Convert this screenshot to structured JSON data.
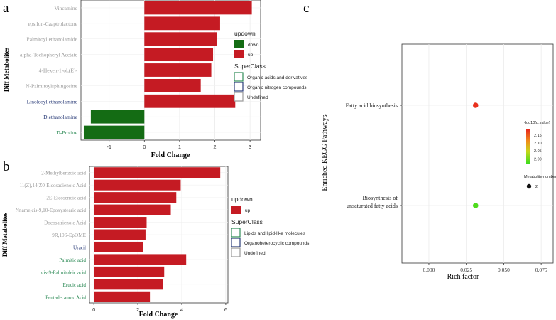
{
  "panel_labels": [
    "a",
    "b",
    "c"
  ],
  "colors": {
    "up": "#c51b23",
    "down": "#146c14",
    "orgacid": "#2e8b57",
    "orgnitro": "#2a3c78",
    "undef": "#9a9a9a",
    "lipid": "#2e8b57",
    "orgahetero": "#2a3c78"
  },
  "chart_data": [
    {
      "type": "bar",
      "orientation": "horizontal",
      "ylabel": "Diff Metabolites",
      "xlabel": "Fold Change",
      "xlim": [
        -1.8,
        3.3
      ],
      "xticks": [
        -1,
        0,
        1,
        2,
        3
      ],
      "xtick_labels": [
        "-1",
        "0",
        "1",
        "2",
        "3"
      ],
      "categories": [
        "Vincamine",
        "epsilon-Caaptrolactone",
        "Palmitoyl ethanolamide",
        "alpha-Tochopheryl Acetate",
        "4-Hexen-1-ol,(E)-",
        "N-Palmitoylsphingosine",
        "Linoleoyl ethanolamine",
        "Diethanolamine",
        "D-Proline"
      ],
      "values": [
        3.05,
        2.15,
        2.05,
        1.95,
        1.9,
        1.6,
        2.58,
        -1.52,
        -1.72
      ],
      "direction": [
        "up",
        "up",
        "up",
        "up",
        "up",
        "up",
        "up",
        "down",
        "down"
      ],
      "superclass": [
        "undef",
        "undef",
        "undef",
        "undef",
        "undef",
        "undef",
        "orgnitro",
        "orgnitro",
        "orgacid"
      ],
      "legend_updown_title": "updown",
      "legend_updown": [
        {
          "key": "down",
          "label": "down"
        },
        {
          "key": "up",
          "label": "up"
        }
      ],
      "legend_super_title": "SuperClass",
      "legend_super": [
        {
          "key": "orgacid",
          "label": "Organic acids and derivatives"
        },
        {
          "key": "orgnitro",
          "label": "Organic nitrogen compounds"
        },
        {
          "key": "undef",
          "label": "Undefined"
        }
      ]
    },
    {
      "type": "bar",
      "orientation": "horizontal",
      "ylabel": "Diff Metabolites",
      "xlabel": "Fold Change",
      "xlim": [
        -0.2,
        6.1
      ],
      "xticks": [
        0,
        2,
        4,
        6
      ],
      "xtick_labels": [
        "0",
        "2",
        "4",
        "6"
      ],
      "categories": [
        "2-Methylbenzoic acid",
        "11(Z),14(Z0-Eicosadienoic Acid",
        "2E-Eicosenoic acid",
        "Nname,cis-9,10-Epoxystearic acid",
        "Docosatrienoic Acid",
        "9R,10S-EpOME",
        "Uracil",
        "Palmitic acid",
        "cis-9-Palmitoleic acid",
        "Erucic acid",
        "Pentadecanoic Acid"
      ],
      "values": [
        5.75,
        3.95,
        3.75,
        3.5,
        2.4,
        2.35,
        2.25,
        4.2,
        3.2,
        3.15,
        2.55
      ],
      "direction": [
        "up",
        "up",
        "up",
        "up",
        "up",
        "up",
        "up",
        "up",
        "up",
        "up",
        "up"
      ],
      "superclass": [
        "undef",
        "undef",
        "undef",
        "undef",
        "undef",
        "undef",
        "orgahetero",
        "lipid",
        "lipid",
        "lipid",
        "lipid"
      ],
      "legend_updown_title": "updown",
      "legend_updown": [
        {
          "key": "up",
          "label": "up"
        }
      ],
      "legend_super_title": "SuperClass",
      "legend_super": [
        {
          "key": "lipid",
          "label": "Lipids and lipid-like molecules"
        },
        {
          "key": "orgahetero",
          "label": "Organoheterocyclic compounds"
        },
        {
          "key": "undef",
          "label": "Undefined"
        }
      ]
    },
    {
      "type": "scatter",
      "ylabel": "Enriched KEGG Pathways",
      "xlabel": "Rich factor",
      "xlim": [
        -0.018,
        0.083
      ],
      "xticks": [
        0.0,
        0.025,
        0.05,
        0.075
      ],
      "xtick_labels": [
        "0.000",
        "0.025",
        "0.050",
        "0.075"
      ],
      "categories": [
        "Fatty acid biosynthesis",
        "Biosynthesis of unsaturated fatty acids"
      ],
      "category_lines": [
        [
          "Fatty acid biosynthesis"
        ],
        [
          "Biosynthesis of",
          "unsaturated fatty acids"
        ]
      ],
      "x": [
        0.0312,
        0.0312
      ],
      "pvalue_color": [
        2.18,
        1.98
      ],
      "size": [
        2,
        2
      ],
      "colorbar_title": "-log10(p.value)",
      "colorbar_ticks": [
        "2.15",
        "2.10",
        "2.05",
        "2.00"
      ],
      "colorbar_range": [
        1.97,
        2.19
      ],
      "size_legend_title": "Metabolite number",
      "size_legend": [
        {
          "value": 2,
          "label": "2"
        }
      ]
    }
  ]
}
